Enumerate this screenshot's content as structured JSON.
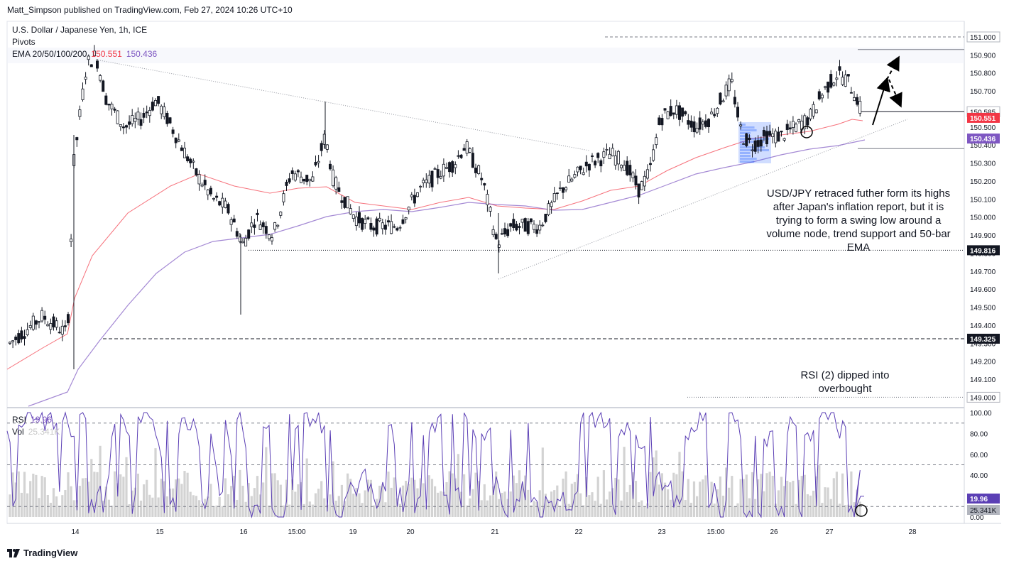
{
  "header": {
    "publisher_line": "Matt_Simpson published on TradingView.com, Feb 27, 2024 10:26 UTC+10"
  },
  "legend": {
    "symbol": "U.S. Dollar / Japanese Yen, 1h, ICE",
    "pivots": "Pivots",
    "ema_label": "EMA 20/50/100/200",
    "ema_value_1": "150.551",
    "ema_value_2": "150.436",
    "rsi_label": "RSI",
    "rsi_value": "19.96",
    "vol_label": "Vol",
    "vol_value": "25.341K"
  },
  "annotations": {
    "main_note": "USD/JPY retraced futher form its highs after Japan's inflation report, but it is trying to form a swing low around a volume node, trend support and 50-bar EMA",
    "rsi_note": "RSI (2) dipped into overbought"
  },
  "footer": {
    "brand": "TradingView"
  },
  "colors": {
    "ema_red": "#f23645",
    "ema_purple": "#7e57c2",
    "rsi": "#5b3fb5",
    "volume": "#c8c8c8",
    "axis_text": "#131722"
  },
  "chart_data": [
    {
      "type": "candlestick",
      "title": "",
      "price_scale": {
        "range": [
          148.975,
          151.08
        ],
        "ticks": [
          "151.000",
          "150.900",
          "150.800",
          "150.700",
          "150.600",
          "150.500",
          "150.400",
          "150.300",
          "150.200",
          "150.100",
          "150.000",
          "149.900",
          "149.800",
          "149.700",
          "149.600",
          "149.500",
          "149.400",
          "149.300",
          "149.200",
          "149.100"
        ]
      },
      "time_axis": {
        "ticks": [
          "14",
          "15",
          "16",
          "15:00",
          "19",
          "20",
          "21",
          "22",
          "23",
          "15:00",
          "26",
          "27",
          "28"
        ]
      },
      "price_labels": [
        {
          "text": "151.000",
          "value": 151.0,
          "style": "plain"
        },
        {
          "text": "150.585",
          "value": 150.585,
          "style": "plain"
        },
        {
          "text": "150.551",
          "value": 150.551,
          "style": "red"
        },
        {
          "text": "150.436",
          "value": 150.436,
          "style": "purple"
        },
        {
          "text": "149.816",
          "value": 149.816,
          "style": "black"
        },
        {
          "text": "149.325",
          "value": 149.325,
          "style": "black"
        },
        {
          "text": "149.000",
          "value": 149.0,
          "style": "plain"
        }
      ],
      "key_levels": [
        151.0,
        150.93,
        150.585,
        150.38,
        149.816,
        149.325,
        149.0
      ],
      "series": [
        {
          "name": "EMA 20/50/100/200",
          "last": 150.551
        },
        {
          "name": "EMA 20/50/100/200",
          "last": 150.436
        }
      ]
    },
    {
      "type": "line",
      "title": "",
      "ylim": [
        0,
        100
      ],
      "ticks": [
        "100.00",
        "80.00",
        "60.00",
        "40.00",
        "20.00",
        "0.00"
      ],
      "levels": [
        90,
        50,
        10
      ],
      "series": [
        {
          "name": "RSI",
          "last": 19.96
        },
        {
          "name": "Vol",
          "last": "25.341K"
        }
      ]
    }
  ]
}
